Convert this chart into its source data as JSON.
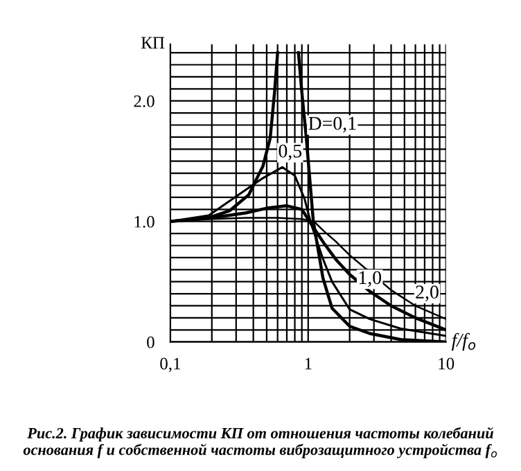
{
  "chart_data": {
    "type": "line",
    "ylabel": "КП",
    "xlabel": "f/f$_{o}$",
    "log": "x",
    "grid": true,
    "xlim": [
      0.1,
      10
    ],
    "ylim": [
      0,
      2.47
    ],
    "xticks": [
      {
        "value": 0.1,
        "label": "0,1"
      },
      {
        "value": 0.2,
        "label": null
      },
      {
        "value": 0.3,
        "label": null
      },
      {
        "value": 0.4,
        "label": null
      },
      {
        "value": 0.5,
        "label": null
      },
      {
        "value": 0.6,
        "label": null
      },
      {
        "value": 0.7,
        "label": null
      },
      {
        "value": 0.8,
        "label": null
      },
      {
        "value": 0.9,
        "label": null
      },
      1,
      {
        "value": 2,
        "label": null
      },
      {
        "value": 3,
        "label": null
      },
      {
        "value": 4,
        "label": null
      },
      {
        "value": 5,
        "label": null
      },
      {
        "value": 6,
        "label": null
      },
      {
        "value": 7,
        "label": null
      },
      {
        "value": 8,
        "label": null
      },
      {
        "value": 9,
        "label": null
      },
      10
    ],
    "yticks": [
      0,
      {
        "value": 0.1,
        "label": null
      },
      {
        "value": 0.2,
        "label": null
      },
      {
        "value": 0.3,
        "label": null
      },
      {
        "value": 0.4,
        "label": null
      },
      {
        "value": 0.5,
        "label": null
      },
      {
        "value": 0.6,
        "label": null
      },
      {
        "value": 0.7,
        "label": null
      },
      {
        "value": 0.8,
        "label": null
      },
      {
        "value": 0.9,
        "label": null
      },
      {
        "value": 1,
        "label": "1.0"
      },
      {
        "value": 1.1,
        "label": null
      },
      {
        "value": 1.2,
        "label": null
      },
      {
        "value": 1.3,
        "label": null
      },
      {
        "value": 1.4,
        "label": null
      },
      {
        "value": 1.5,
        "label": null
      },
      {
        "value": 1.6,
        "label": null
      },
      {
        "value": 1.7,
        "label": null
      },
      {
        "value": 1.8,
        "label": null
      },
      {
        "value": 1.9,
        "label": null
      },
      {
        "value": 2,
        "label": "2.0"
      },
      {
        "value": 2.1,
        "label": null
      },
      {
        "value": 2.2,
        "label": null
      },
      {
        "value": 2.3,
        "label": null
      },
      {
        "value": 2.4,
        "label": null
      }
    ],
    "series": [
      {
        "color": "#000000",
        "x": [
          0.1,
          0.19,
          0.27,
          0.37,
          0.47,
          0.53,
          0.57,
          0.6,
          0.7,
          0.85,
          0.9,
          0.97,
          1.09,
          1.28,
          1.49,
          2.0,
          2.8,
          4.7,
          10
        ],
        "values": [
          1.0,
          1.03,
          1.09,
          1.22,
          1.46,
          1.69,
          2.07,
          2.4,
          null,
          2.4,
          2.07,
          1.69,
          1.0,
          0.53,
          0.28,
          0.13,
          0.07,
          0.02,
          0.0
        ]
      },
      {
        "color": "#000000",
        "x": [
          0.1,
          0.19,
          0.32,
          0.47,
          0.65,
          0.8,
          0.94,
          1.05,
          1.28,
          1.49,
          2.0,
          2.8,
          4.7,
          10
        ],
        "values": [
          1.0,
          1.05,
          1.23,
          1.36,
          1.45,
          1.38,
          1.19,
          0.98,
          0.69,
          0.5,
          0.27,
          0.19,
          0.11,
          0.05
        ]
      },
      {
        "color": "#000000",
        "x": [
          0.1,
          0.2,
          0.35,
          0.5,
          0.7,
          0.9,
          1.05,
          1.3,
          1.6,
          2.0,
          2.8,
          4.0,
          6.0,
          10
        ],
        "values": [
          1.0,
          1.03,
          1.07,
          1.11,
          1.13,
          1.1,
          0.98,
          0.82,
          0.68,
          0.56,
          0.42,
          0.3,
          0.2,
          0.1
        ]
      },
      {
        "color": "#000000",
        "x": [
          0.1,
          0.2,
          0.35,
          0.6,
          0.9,
          1.1,
          1.3,
          1.6,
          2.0,
          2.8,
          4.0,
          6.0,
          10
        ],
        "values": [
          1.0,
          1.02,
          1.03,
          1.03,
          1.02,
          1.0,
          0.92,
          0.83,
          0.72,
          0.58,
          0.43,
          0.3,
          0.19
        ]
      }
    ],
    "annotations": [
      {
        "text": "D=0,1",
        "x": 1.5,
        "y": 1.8
      },
      {
        "text": "0,5",
        "x": 0.74,
        "y": 1.57
      },
      {
        "text": "1,0",
        "x": 2.8,
        "y": 0.52
      },
      {
        "text": "2,0",
        "x": 7.3,
        "y": 0.4
      },
      "Рис.2. График зависимости КП от отношения частоты колебаний основания f и собственной частоты виброзащитного устройства f$_{o}$"
    ]
  }
}
